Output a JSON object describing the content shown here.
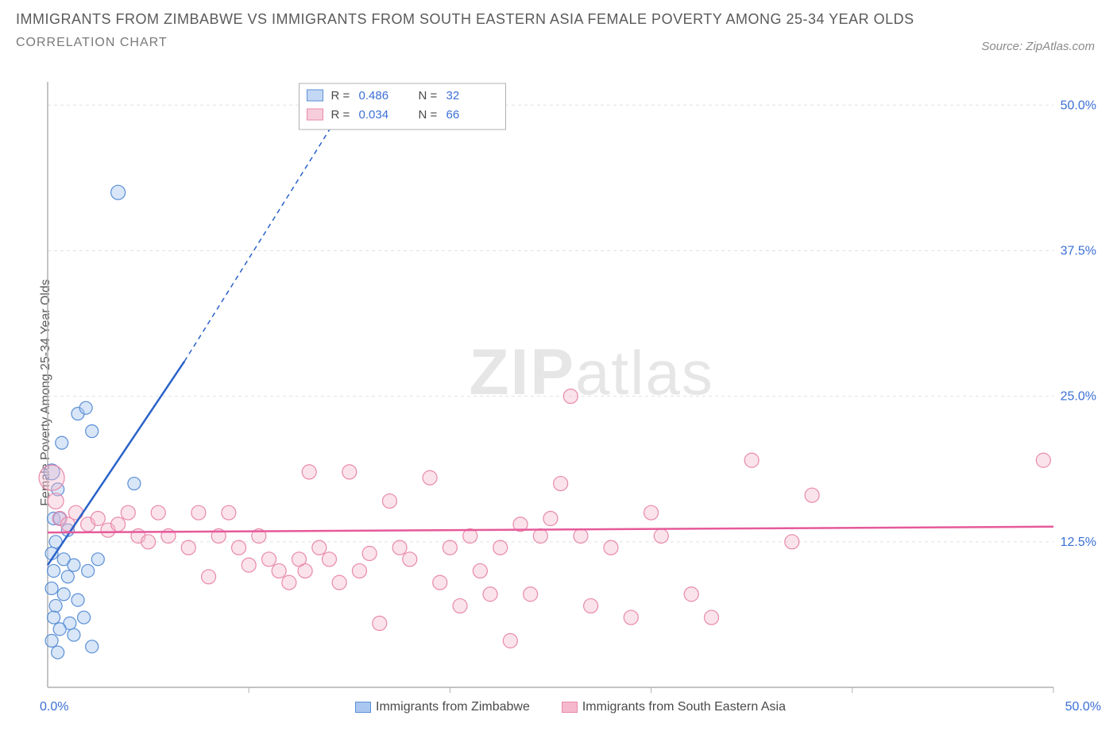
{
  "title": {
    "line1": "IMMIGRANTS FROM ZIMBABWE VS IMMIGRANTS FROM SOUTH EASTERN ASIA FEMALE POVERTY AMONG 25-34 YEAR OLDS",
    "line2": "CORRELATION CHART",
    "fontsize_main": 18,
    "fontsize_sub": 16,
    "color": "#5a5a5a"
  },
  "source": {
    "label": "Source:",
    "name": "ZipAtlas.com"
  },
  "watermark": {
    "big": "ZIP",
    "small": "atlas"
  },
  "chart": {
    "type": "scatter-correlation",
    "background_color": "#ffffff",
    "grid_color": "#e0e0e0",
    "axis_color": "#b0b0b0",
    "xlim": [
      0,
      50
    ],
    "ylim": [
      0,
      52
    ],
    "y_ticks": [
      {
        "v": 12.5,
        "label": "12.5%"
      },
      {
        "v": 25.0,
        "label": "25.0%"
      },
      {
        "v": 37.5,
        "label": "37.5%"
      },
      {
        "v": 50.0,
        "label": "50.0%"
      }
    ],
    "x_ticks_bottom": [
      {
        "v": 10,
        "label": ""
      },
      {
        "v": 20,
        "label": ""
      },
      {
        "v": 30,
        "label": ""
      },
      {
        "v": 40,
        "label": ""
      },
      {
        "v": 50,
        "label": ""
      }
    ],
    "x_tick_0": "0.0%",
    "x_tick_max": "50.0%",
    "y_axis_label": "Female Poverty Among 25-34 Year Olds",
    "tick_label_color": "#3b6fd6",
    "tick_label_fontsize": 16,
    "series": [
      {
        "name": "Immigrants from Zimbabwe",
        "fill": "#a9c7f0",
        "fill_opacity": 0.45,
        "stroke": "#5a8fd6",
        "line_color": "#2a62c9",
        "R": "0.486",
        "N": "32",
        "trend": {
          "x1": 0,
          "y1": 10.5,
          "x2": 6.8,
          "y2": 28,
          "extend_to_x": 15.5,
          "extend_to_y": 52
        },
        "points": [
          {
            "x": 0.2,
            "y": 18.5,
            "r": 10
          },
          {
            "x": 0.5,
            "y": 17,
            "r": 8
          },
          {
            "x": 0.3,
            "y": 14.5,
            "r": 8
          },
          {
            "x": 0.6,
            "y": 14.5,
            "r": 8
          },
          {
            "x": 1.0,
            "y": 13.5,
            "r": 8
          },
          {
            "x": 0.4,
            "y": 12.5,
            "r": 8
          },
          {
            "x": 0.2,
            "y": 11.5,
            "r": 8
          },
          {
            "x": 0.8,
            "y": 11,
            "r": 8
          },
          {
            "x": 1.3,
            "y": 10.5,
            "r": 8
          },
          {
            "x": 0.3,
            "y": 10,
            "r": 8
          },
          {
            "x": 1.0,
            "y": 9.5,
            "r": 8
          },
          {
            "x": 0.2,
            "y": 8.5,
            "r": 8
          },
          {
            "x": 0.8,
            "y": 8,
            "r": 8
          },
          {
            "x": 0.4,
            "y": 7,
            "r": 8
          },
          {
            "x": 1.5,
            "y": 7.5,
            "r": 8
          },
          {
            "x": 0.3,
            "y": 6,
            "r": 8
          },
          {
            "x": 1.1,
            "y": 5.5,
            "r": 8
          },
          {
            "x": 0.6,
            "y": 5,
            "r": 8
          },
          {
            "x": 0.2,
            "y": 4,
            "r": 8
          },
          {
            "x": 1.3,
            "y": 4.5,
            "r": 8
          },
          {
            "x": 1.8,
            "y": 6,
            "r": 8
          },
          {
            "x": 0.5,
            "y": 3,
            "r": 8
          },
          {
            "x": 2.2,
            "y": 3.5,
            "r": 8
          },
          {
            "x": 2.0,
            "y": 10,
            "r": 8
          },
          {
            "x": 2.5,
            "y": 11,
            "r": 8
          },
          {
            "x": 0.7,
            "y": 21,
            "r": 8
          },
          {
            "x": 1.5,
            "y": 23.5,
            "r": 8
          },
          {
            "x": 1.9,
            "y": 24,
            "r": 8
          },
          {
            "x": 2.2,
            "y": 22,
            "r": 8
          },
          {
            "x": 4.3,
            "y": 17.5,
            "r": 8
          },
          {
            "x": 3.5,
            "y": 42.5,
            "r": 9
          }
        ]
      },
      {
        "name": "Immigrants from South Eastern Asia",
        "fill": "#f5b8cc",
        "fill_opacity": 0.4,
        "stroke": "#e889ab",
        "line_color": "#e65a9a",
        "R": "0.034",
        "N": "66",
        "trend": {
          "x1": 0,
          "y1": 13.3,
          "x2": 50,
          "y2": 13.8
        },
        "points": [
          {
            "x": 0.2,
            "y": 18,
            "r": 16
          },
          {
            "x": 0.4,
            "y": 16,
            "r": 10
          },
          {
            "x": 0.6,
            "y": 14.5,
            "r": 9
          },
          {
            "x": 1.0,
            "y": 14,
            "r": 9
          },
          {
            "x": 1.4,
            "y": 15,
            "r": 9
          },
          {
            "x": 2.0,
            "y": 14,
            "r": 9
          },
          {
            "x": 2.5,
            "y": 14.5,
            "r": 9
          },
          {
            "x": 3.0,
            "y": 13.5,
            "r": 9
          },
          {
            "x": 3.5,
            "y": 14,
            "r": 9
          },
          {
            "x": 4.0,
            "y": 15,
            "r": 9
          },
          {
            "x": 4.5,
            "y": 13,
            "r": 9
          },
          {
            "x": 5.0,
            "y": 12.5,
            "r": 9
          },
          {
            "x": 5.5,
            "y": 15,
            "r": 9
          },
          {
            "x": 6.0,
            "y": 13,
            "r": 9
          },
          {
            "x": 7.0,
            "y": 12,
            "r": 9
          },
          {
            "x": 7.5,
            "y": 15,
            "r": 9
          },
          {
            "x": 8.0,
            "y": 9.5,
            "r": 9
          },
          {
            "x": 8.5,
            "y": 13,
            "r": 9
          },
          {
            "x": 9.0,
            "y": 15,
            "r": 9
          },
          {
            "x": 9.5,
            "y": 12,
            "r": 9
          },
          {
            "x": 10,
            "y": 10.5,
            "r": 9
          },
          {
            "x": 10.5,
            "y": 13,
            "r": 9
          },
          {
            "x": 11,
            "y": 11,
            "r": 9
          },
          {
            "x": 11.5,
            "y": 10,
            "r": 9
          },
          {
            "x": 12,
            "y": 9,
            "r": 9
          },
          {
            "x": 12.5,
            "y": 11,
            "r": 9
          },
          {
            "x": 12.8,
            "y": 10,
            "r": 9
          },
          {
            "x": 13,
            "y": 18.5,
            "r": 9
          },
          {
            "x": 13.5,
            "y": 12,
            "r": 9
          },
          {
            "x": 14,
            "y": 11,
            "r": 9
          },
          {
            "x": 14.5,
            "y": 9,
            "r": 9
          },
          {
            "x": 15,
            "y": 18.5,
            "r": 9
          },
          {
            "x": 15.5,
            "y": 10,
            "r": 9
          },
          {
            "x": 16,
            "y": 11.5,
            "r": 9
          },
          {
            "x": 16.5,
            "y": 5.5,
            "r": 9
          },
          {
            "x": 17,
            "y": 16,
            "r": 9
          },
          {
            "x": 17.5,
            "y": 12,
            "r": 9
          },
          {
            "x": 18,
            "y": 11,
            "r": 9
          },
          {
            "x": 19,
            "y": 18,
            "r": 9
          },
          {
            "x": 19.5,
            "y": 9,
            "r": 9
          },
          {
            "x": 20,
            "y": 12,
            "r": 9
          },
          {
            "x": 20.5,
            "y": 7,
            "r": 9
          },
          {
            "x": 21,
            "y": 13,
            "r": 9
          },
          {
            "x": 21.5,
            "y": 10,
            "r": 9
          },
          {
            "x": 22,
            "y": 8,
            "r": 9
          },
          {
            "x": 22.5,
            "y": 12,
            "r": 9
          },
          {
            "x": 23,
            "y": 4,
            "r": 9
          },
          {
            "x": 23.5,
            "y": 14,
            "r": 9
          },
          {
            "x": 24,
            "y": 8,
            "r": 9
          },
          {
            "x": 24.5,
            "y": 13,
            "r": 9
          },
          {
            "x": 25,
            "y": 14.5,
            "r": 9
          },
          {
            "x": 25.5,
            "y": 17.5,
            "r": 9
          },
          {
            "x": 26,
            "y": 25,
            "r": 9
          },
          {
            "x": 26.5,
            "y": 13,
            "r": 9
          },
          {
            "x": 27,
            "y": 7,
            "r": 9
          },
          {
            "x": 28,
            "y": 12,
            "r": 9
          },
          {
            "x": 29,
            "y": 6,
            "r": 9
          },
          {
            "x": 30,
            "y": 15,
            "r": 9
          },
          {
            "x": 30.5,
            "y": 13,
            "r": 9
          },
          {
            "x": 32,
            "y": 8,
            "r": 9
          },
          {
            "x": 33,
            "y": 6,
            "r": 9
          },
          {
            "x": 35,
            "y": 19.5,
            "r": 9
          },
          {
            "x": 37,
            "y": 12.5,
            "r": 9
          },
          {
            "x": 38,
            "y": 16.5,
            "r": 9
          },
          {
            "x": 49.5,
            "y": 19.5,
            "r": 9
          }
        ]
      }
    ],
    "legend_box": {
      "border_color": "#b0b0b0",
      "bg": "#ffffff",
      "label_R": "R =",
      "label_N": "N =",
      "value_color": "#3b6fd6"
    }
  }
}
